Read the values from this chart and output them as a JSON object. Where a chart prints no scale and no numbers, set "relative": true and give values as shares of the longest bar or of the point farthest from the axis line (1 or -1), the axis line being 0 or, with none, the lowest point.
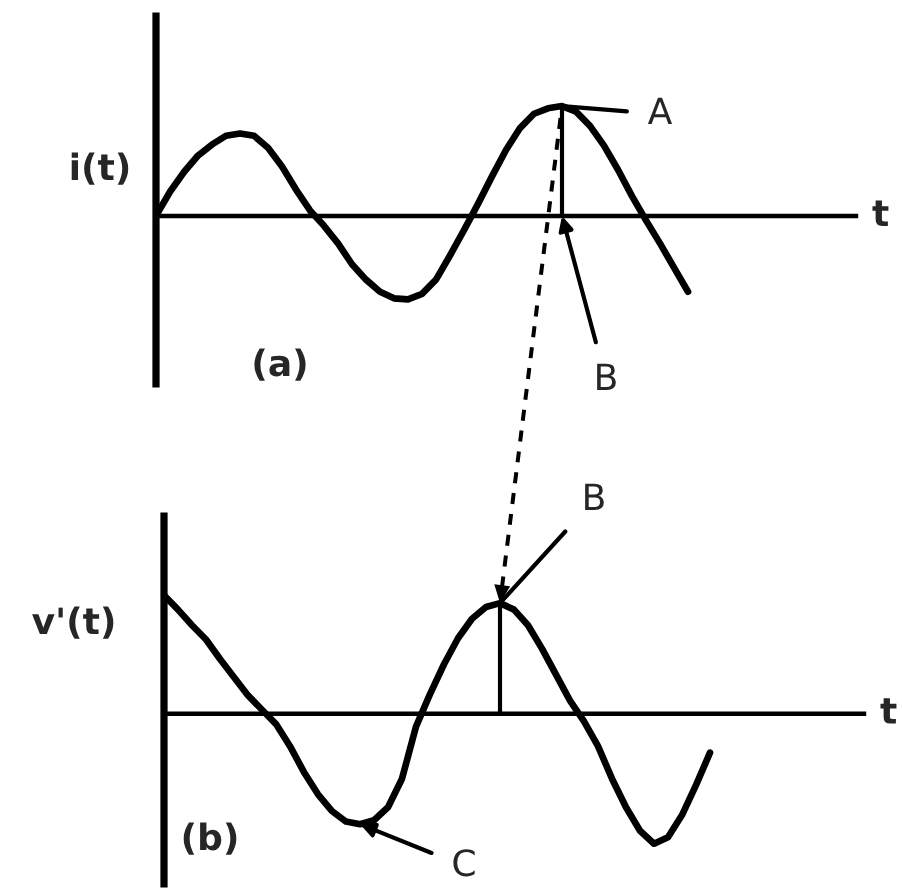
{
  "chart_data": [
    {
      "type": "line",
      "relative": true,
      "ylabel": "i(t)",
      "xlabel": "t",
      "categories": [
        null,
        null,
        null,
        null,
        null,
        null,
        null,
        null,
        null,
        null,
        null,
        null,
        null,
        null,
        null,
        null,
        null,
        null,
        null,
        null,
        null,
        null,
        null,
        null,
        null,
        null,
        null,
        null,
        null,
        null,
        null,
        null,
        null,
        null,
        null,
        null,
        null,
        null,
        null,
        null,
        null,
        null,
        null,
        null,
        null,
        null,
        null,
        null,
        null,
        null,
        null
      ],
      "series": [
        {
          "color": "#000000",
          "values": [
            0,
            0.22,
            0.4,
            0.55,
            0.65,
            0.73,
            0.75,
            0.73,
            0.62,
            0.45,
            0.24,
            0.05,
            -0.09,
            -0.25,
            -0.44,
            -0.58,
            -0.69,
            -0.75,
            -0.76,
            -0.71,
            -0.58,
            -0.36,
            -0.13,
            0.11,
            0.36,
            0.6,
            0.8,
            0.93,
            0.98,
            1,
            0.95,
            0.82,
            0.64,
            0.42,
            0.18,
            -0.04,
            -0.25,
            -0.47,
            -0.69,
            null,
            null,
            null,
            null,
            null,
            null,
            null,
            null,
            null,
            null,
            null,
            null
          ]
        }
      ],
      "annotations": [
        "(a)",
        "A",
        "B"
      ]
    },
    {
      "type": "line",
      "relative": true,
      "ylabel": "v'(t)",
      "xlabel": "t",
      "categories": [
        null,
        null,
        null,
        null,
        null,
        null,
        null,
        null,
        null,
        null,
        null,
        null,
        null,
        null,
        null,
        null,
        null,
        null,
        null,
        null,
        null,
        null,
        null,
        null,
        null,
        null,
        null,
        null,
        null,
        null,
        null,
        null,
        null,
        null,
        null,
        null,
        null,
        null,
        null,
        null,
        null,
        null,
        null,
        null,
        null,
        null,
        null,
        null,
        null,
        null,
        null
      ],
      "series": [
        {
          "color": "#000000",
          "values": [
            0.91,
            0.8,
            0.68,
            0.57,
            0.42,
            0.28,
            0.14,
            0.03,
            -0.08,
            -0.25,
            -0.45,
            -0.62,
            -0.75,
            -0.83,
            -0.85,
            -0.82,
            -0.72,
            -0.5,
            -0.1,
            0.15,
            0.38,
            0.58,
            0.73,
            0.82,
            0.85,
            0.8,
            0.68,
            0.5,
            0.3,
            0.1,
            -0.06,
            -0.25,
            -0.5,
            -0.72,
            -0.9,
            -1,
            -0.95,
            -0.78,
            -0.55,
            -0.3,
            null,
            null,
            null,
            null,
            null,
            null,
            null,
            null,
            null,
            null,
            null
          ]
        }
      ],
      "annotations": [
        "(b)",
        "B",
        "C"
      ]
    }
  ]
}
